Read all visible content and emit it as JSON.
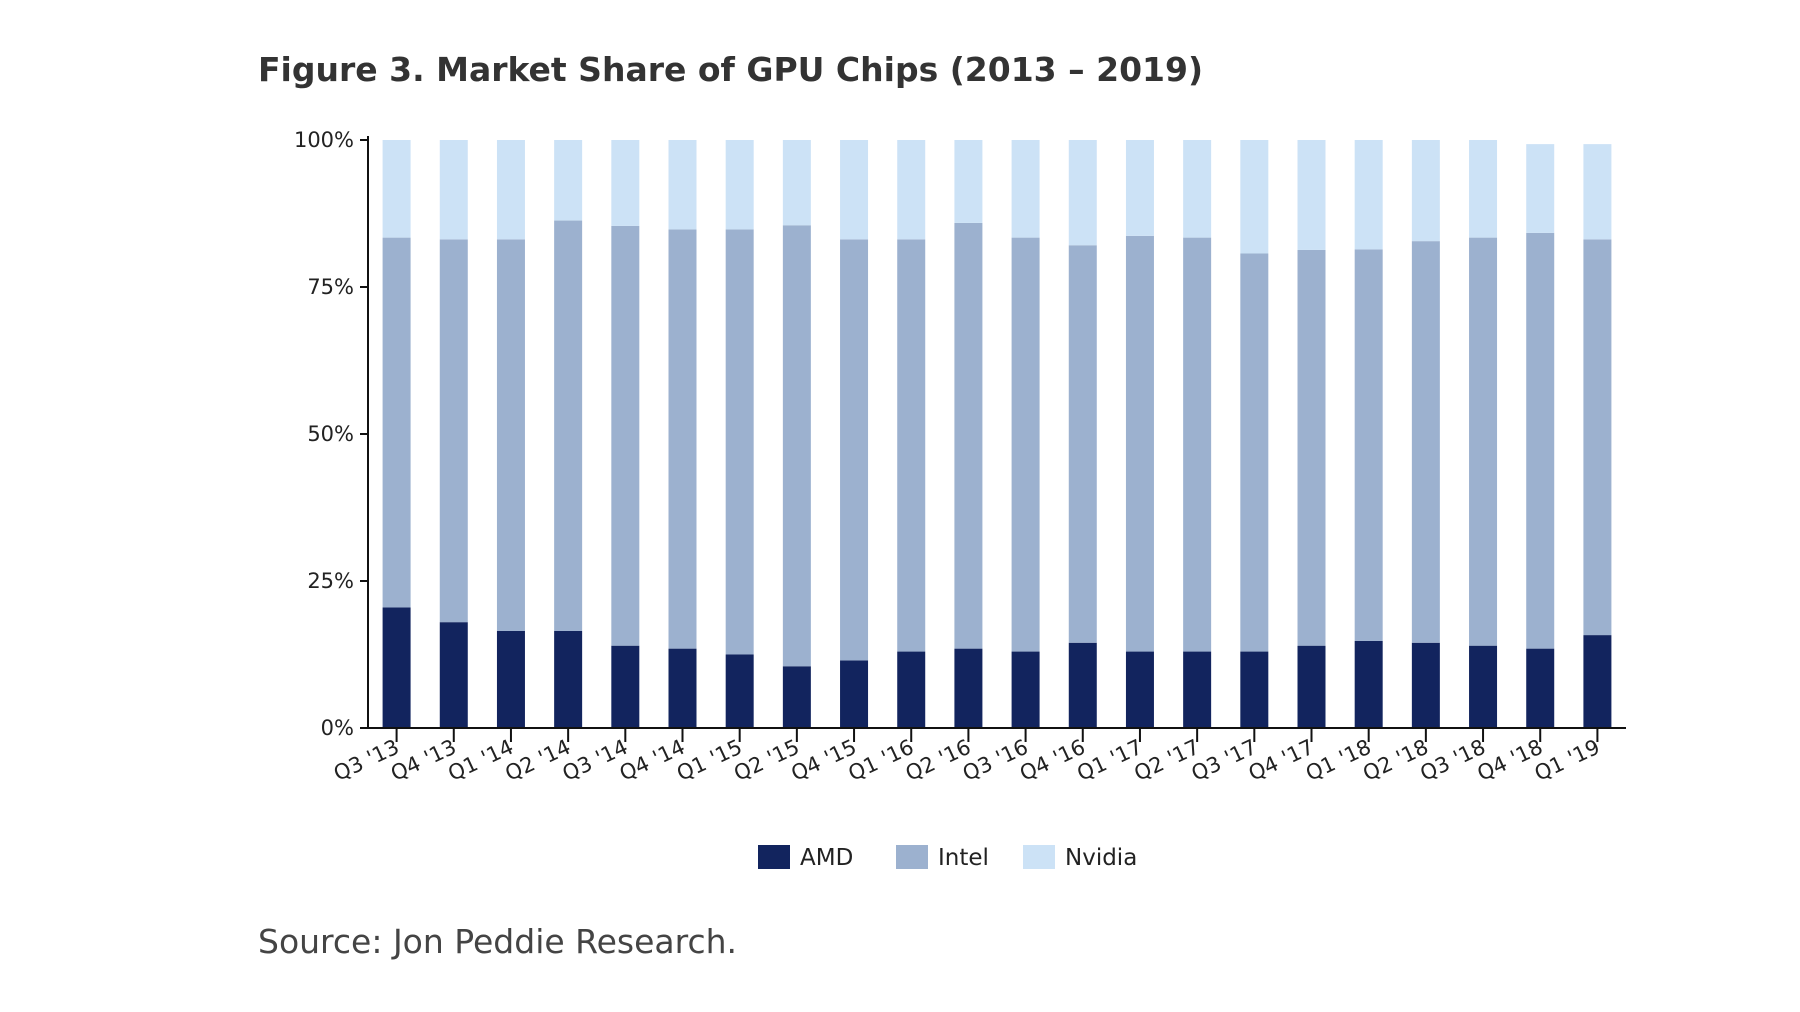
{
  "page": {
    "title": "Figure 3. Market Share of GPU Chips (2013 – 2019)",
    "source": "Source: Jon Peddie Research."
  },
  "chart_data": {
    "type": "bar",
    "stacked": true,
    "title": "Figure 3. Market Share of GPU Chips (2013 – 2019)",
    "xlabel": "",
    "ylabel": "",
    "ylim": [
      0,
      100
    ],
    "y_ticks": [
      "0%",
      "25%",
      "50%",
      "75%",
      "100%"
    ],
    "y_tick_values": [
      0,
      25,
      50,
      75,
      100
    ],
    "grid": false,
    "legend_position": "bottom",
    "categories": [
      "Q3 '13",
      "Q4 '13",
      "Q1 '14",
      "Q2 '14",
      "Q3 '14",
      "Q4 '14",
      "Q1 '15",
      "Q2 '15",
      "Q4 '15",
      "Q1 '16",
      "Q2 '16",
      "Q3 '16",
      "Q4 '16",
      "Q1 '17",
      "Q2 '17",
      "Q3 '17",
      "Q4 '17",
      "Q1 '18",
      "Q2 '18",
      "Q3 '18",
      "Q4 '18",
      "Q1 '19"
    ],
    "series": [
      {
        "name": "AMD",
        "color": "#12245e",
        "values": [
          20.5,
          18,
          16.5,
          16.5,
          14,
          13.5,
          12.5,
          10.5,
          11.5,
          13,
          13.5,
          13,
          14.5,
          13,
          13,
          13,
          14,
          14.8,
          14.5,
          14,
          13.5,
          15.8
        ]
      },
      {
        "name": "Intel",
        "color": "#9cb1cf",
        "values": [
          62.9,
          65.1,
          66.6,
          69.8,
          71.4,
          71.3,
          72.3,
          75,
          71.6,
          70.1,
          72.4,
          70.4,
          67.6,
          70.7,
          70.4,
          67.7,
          67.3,
          66.6,
          68.3,
          69.4,
          70.7,
          67.3
        ]
      },
      {
        "name": "Nvidia",
        "color": "#cce2f6",
        "values": [
          16.6,
          16.9,
          16.9,
          13.7,
          14.6,
          15.2,
          15.2,
          14.5,
          16.9,
          16.9,
          14.1,
          16.6,
          17.9,
          16.3,
          16.6,
          19.3,
          18.7,
          18.6,
          17.2,
          16.6,
          15.1,
          16.2
        ]
      }
    ]
  }
}
